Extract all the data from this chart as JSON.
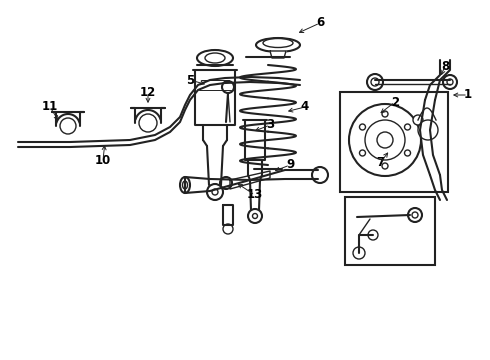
{
  "bg_color": "#ffffff",
  "line_color": "#222222",
  "label_color": "#000000",
  "label_fontsize": 8.5,
  "fig_w": 4.9,
  "fig_h": 3.6,
  "dpi": 100
}
